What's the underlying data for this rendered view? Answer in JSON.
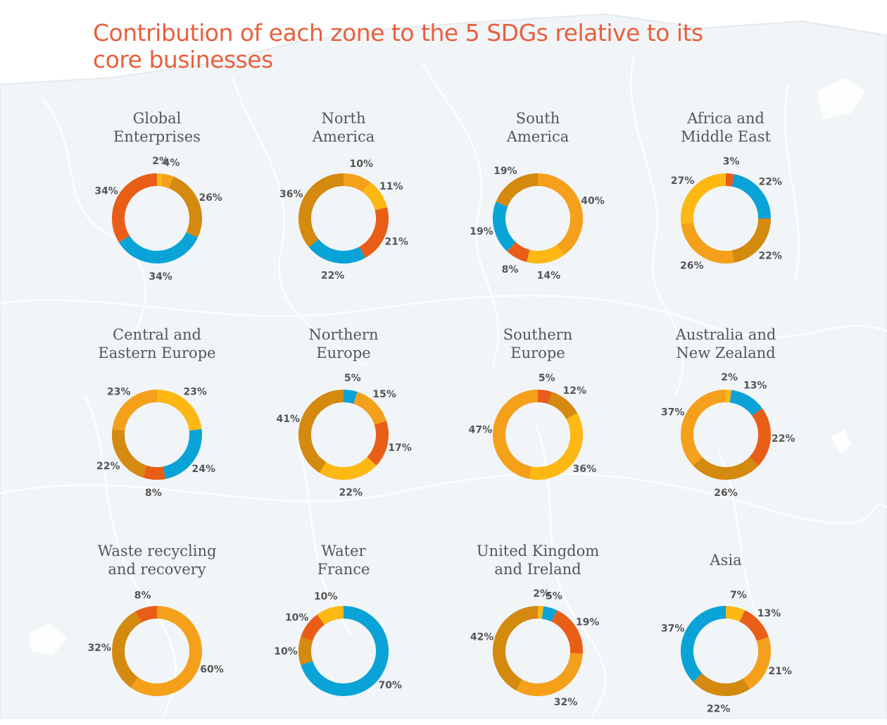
{
  "title": "Contribution of each zone to the 5 SDGs relative to its core businesses",
  "colors": {
    "blue": "#0aa3d8",
    "red": "#e95e16",
    "yellow": "#fdb813",
    "orange": "#f5a01a",
    "gold": "#d4890f"
  },
  "chart_data": [
    {
      "type": "pie",
      "title_lines": [
        "Global",
        "Enterprises"
      ],
      "slices": [
        {
          "label": "2%",
          "value": 2,
          "color": "yellow"
        },
        {
          "label": "4%",
          "value": 4,
          "color": "orange"
        },
        {
          "label": "26%",
          "value": 26,
          "color": "gold"
        },
        {
          "label": "34%",
          "value": 34,
          "color": "blue"
        },
        {
          "label": "34%",
          "value": 34,
          "color": "red"
        }
      ]
    },
    {
      "type": "pie",
      "title_lines": [
        "North",
        "America"
      ],
      "slices": [
        {
          "label": "10%",
          "value": 10,
          "color": "orange"
        },
        {
          "label": "11%",
          "value": 11,
          "color": "yellow"
        },
        {
          "label": "21%",
          "value": 21,
          "color": "red"
        },
        {
          "label": "22%",
          "value": 22,
          "color": "blue"
        },
        {
          "label": "36%",
          "value": 36,
          "color": "gold"
        }
      ]
    },
    {
      "type": "pie",
      "title_lines": [
        "South",
        "America"
      ],
      "slices": [
        {
          "label": "40%",
          "value": 40,
          "color": "orange"
        },
        {
          "label": "14%",
          "value": 14,
          "color": "yellow"
        },
        {
          "label": "8%",
          "value": 8,
          "color": "red"
        },
        {
          "label": "19%",
          "value": 19,
          "color": "blue"
        },
        {
          "label": "19%",
          "value": 19,
          "color": "gold"
        }
      ]
    },
    {
      "type": "pie",
      "title_lines": [
        "Africa and",
        "Middle East"
      ],
      "slices": [
        {
          "label": "3%",
          "value": 3,
          "color": "red"
        },
        {
          "label": "22%",
          "value": 22,
          "color": "blue"
        },
        {
          "label": "22%",
          "value": 22,
          "color": "gold"
        },
        {
          "label": "26%",
          "value": 26,
          "color": "orange"
        },
        {
          "label": "27%",
          "value": 27,
          "color": "yellow"
        }
      ]
    },
    {
      "type": "pie",
      "title_lines": [
        "Central and",
        "Eastern Europe"
      ],
      "slices": [
        {
          "label": "23%",
          "value": 23,
          "color": "yellow"
        },
        {
          "label": "24%",
          "value": 24,
          "color": "blue"
        },
        {
          "label": "8%",
          "value": 8,
          "color": "red"
        },
        {
          "label": "22%",
          "value": 22,
          "color": "gold"
        },
        {
          "label": "23%",
          "value": 23,
          "color": "orange"
        }
      ]
    },
    {
      "type": "pie",
      "title_lines": [
        "Northern",
        "Europe"
      ],
      "slices": [
        {
          "label": "5%",
          "value": 5,
          "color": "blue"
        },
        {
          "label": "15%",
          "value": 15,
          "color": "orange"
        },
        {
          "label": "17%",
          "value": 17,
          "color": "red"
        },
        {
          "label": "22%",
          "value": 22,
          "color": "yellow"
        },
        {
          "label": "41%",
          "value": 41,
          "color": "gold"
        }
      ]
    },
    {
      "type": "pie",
      "title_lines": [
        "Southern",
        "Europe"
      ],
      "slices": [
        {
          "label": "5%",
          "value": 5,
          "color": "red"
        },
        {
          "label": "12%",
          "value": 12,
          "color": "gold"
        },
        {
          "label": "36%",
          "value": 36,
          "color": "yellow"
        },
        {
          "label": "47%",
          "value": 47,
          "color": "orange"
        }
      ]
    },
    {
      "type": "pie",
      "title_lines": [
        "Australia and",
        "New Zealand"
      ],
      "slices": [
        {
          "label": "2%",
          "value": 2,
          "color": "yellow"
        },
        {
          "label": "13%",
          "value": 13,
          "color": "blue"
        },
        {
          "label": "22%",
          "value": 22,
          "color": "red"
        },
        {
          "label": "26%",
          "value": 26,
          "color": "gold"
        },
        {
          "label": "37%",
          "value": 37,
          "color": "orange"
        }
      ]
    },
    {
      "type": "pie",
      "title_lines": [
        "Waste recycling",
        "and recovery"
      ],
      "slices": [
        {
          "label": "60%",
          "value": 60,
          "color": "orange"
        },
        {
          "label": "32%",
          "value": 32,
          "color": "gold"
        },
        {
          "label": "8%",
          "value": 8,
          "color": "red"
        }
      ]
    },
    {
      "type": "pie",
      "title_lines": [
        "Water",
        "France"
      ],
      "slices": [
        {
          "label": "70%",
          "value": 70,
          "color": "blue"
        },
        {
          "label": "10%",
          "value": 10,
          "color": "gold"
        },
        {
          "label": "10%",
          "value": 10,
          "color": "red"
        },
        {
          "label": "10%",
          "value": 10,
          "color": "yellow"
        }
      ]
    },
    {
      "type": "pie",
      "title_lines": [
        "United Kingdom",
        "and Ireland"
      ],
      "slices": [
        {
          "label": "2%",
          "value": 2,
          "color": "yellow"
        },
        {
          "label": "5%",
          "value": 5,
          "color": "blue"
        },
        {
          "label": "19%",
          "value": 19,
          "color": "red"
        },
        {
          "label": "32%",
          "value": 32,
          "color": "orange"
        },
        {
          "label": "42%",
          "value": 42,
          "color": "gold"
        }
      ]
    },
    {
      "type": "pie",
      "title_lines": [
        "Asia"
      ],
      "slices": [
        {
          "label": "7%",
          "value": 7,
          "color": "yellow"
        },
        {
          "label": "13%",
          "value": 13,
          "color": "red"
        },
        {
          "label": "21%",
          "value": 21,
          "color": "orange"
        },
        {
          "label": "22%",
          "value": 22,
          "color": "gold"
        },
        {
          "label": "37%",
          "value": 37,
          "color": "blue"
        }
      ]
    }
  ]
}
